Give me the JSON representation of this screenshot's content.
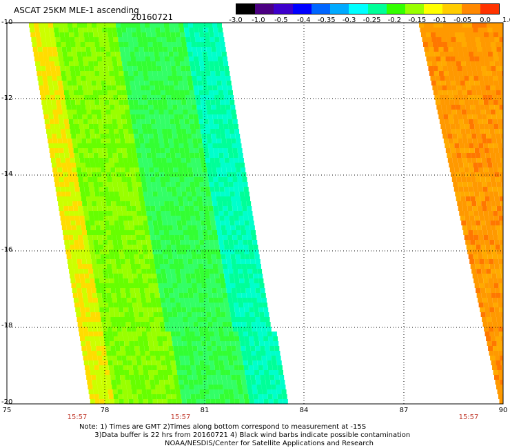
{
  "title": {
    "product": "ASCAT 25KM MLE-1 ascending",
    "date": "20160721"
  },
  "colorbar": {
    "labels": [
      "-3.0",
      "-1.0",
      "-0.5",
      "-0.4",
      "-0.35",
      "-0.3",
      "-0.25",
      "-0.2",
      "-0.15",
      "-0.1",
      "-0.05",
      "0.0",
      "1.0"
    ],
    "colors": [
      "#000000",
      "#4b0082",
      "#3d00cc",
      "#0000ff",
      "#0066ff",
      "#00aaff",
      "#00ffff",
      "#00ff99",
      "#33ff00",
      "#99ff00",
      "#ffff00",
      "#ffcc00",
      "#ff8800",
      "#ff3300"
    ]
  },
  "map": {
    "lat_ticks": [
      "-10",
      "-12",
      "-14",
      "-16",
      "-18",
      "-20"
    ],
    "lon_ticks": [
      "75",
      "78",
      "81",
      "84",
      "87",
      "90"
    ],
    "times": [
      "15:57",
      "15:57",
      "15:57"
    ]
  },
  "notes": {
    "line1": "Note: 1) Times are GMT 2)Times along bottom correspond to measurement at -15S",
    "line2": "       3)Data buffer is 22 hrs from 20160721 4) Black wind barbs indicate possible contamination",
    "line3": "                                       NOAA/NESDIS/Center for Satellite Applications and Research"
  }
}
